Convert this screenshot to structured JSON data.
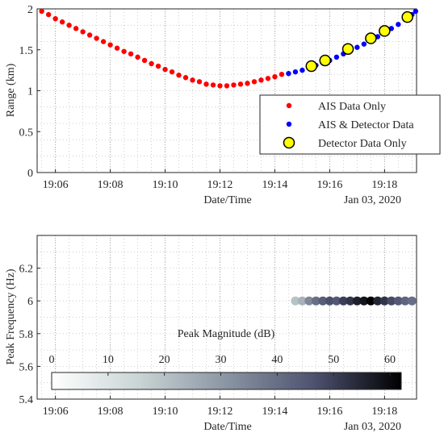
{
  "chart_data": [
    {
      "type": "scatter",
      "xlabel": "Date/Time",
      "ylabel": "Range (km)",
      "date_note": "Jan 03, 2020",
      "xlim": [
        "19:05:20",
        "19:19:10"
      ],
      "ylim": [
        0,
        2
      ],
      "grid": true,
      "grid_style": "dotted",
      "x_ticks": [
        "19:06",
        "19:08",
        "19:10",
        "19:12",
        "19:14",
        "19:16",
        "19:18"
      ],
      "y_ticks": [
        "0",
        "0.5",
        "1",
        "1.5",
        "2"
      ],
      "legend_position": "lower-right",
      "series": [
        {
          "name": "AIS Data Only",
          "color": "#ff0000",
          "marker": "dot",
          "points": [
            [
              "19:05:30",
              1.97
            ],
            [
              "19:05:45",
              1.93
            ],
            [
              "19:06:00",
              1.88
            ],
            [
              "19:06:15",
              1.84
            ],
            [
              "19:06:30",
              1.8
            ],
            [
              "19:06:45",
              1.76
            ],
            [
              "19:07:00",
              1.72
            ],
            [
              "19:07:15",
              1.68
            ],
            [
              "19:07:30",
              1.64
            ],
            [
              "19:07:45",
              1.6
            ],
            [
              "19:08:00",
              1.56
            ],
            [
              "19:08:15",
              1.52
            ],
            [
              "19:08:30",
              1.48
            ],
            [
              "19:08:45",
              1.45
            ],
            [
              "19:09:00",
              1.41
            ],
            [
              "19:09:15",
              1.37
            ],
            [
              "19:09:30",
              1.33
            ],
            [
              "19:09:45",
              1.3
            ],
            [
              "19:10:00",
              1.26
            ],
            [
              "19:10:15",
              1.23
            ],
            [
              "19:10:30",
              1.19
            ],
            [
              "19:10:45",
              1.16
            ],
            [
              "19:11:00",
              1.13
            ],
            [
              "19:11:15",
              1.11
            ],
            [
              "19:11:30",
              1.08
            ],
            [
              "19:11:45",
              1.07
            ],
            [
              "19:12:00",
              1.06
            ],
            [
              "19:12:15",
              1.06
            ],
            [
              "19:12:30",
              1.07
            ],
            [
              "19:12:45",
              1.08
            ],
            [
              "19:13:00",
              1.09
            ],
            [
              "19:13:15",
              1.11
            ],
            [
              "19:13:30",
              1.13
            ],
            [
              "19:13:45",
              1.15
            ],
            [
              "19:14:00",
              1.17
            ],
            [
              "19:14:15",
              1.2
            ]
          ]
        },
        {
          "name": "AIS & Detector Data",
          "color": "#0000ff",
          "marker": "dot",
          "points": [
            [
              "19:14:30",
              1.21
            ],
            [
              "19:14:45",
              1.23
            ],
            [
              "19:15:00",
              1.25
            ],
            [
              "19:15:15",
              1.28
            ],
            [
              "19:15:30",
              1.31
            ],
            [
              "19:15:45",
              1.34
            ],
            [
              "19:16:00",
              1.37
            ],
            [
              "19:16:15",
              1.41
            ],
            [
              "19:16:30",
              1.45
            ],
            [
              "19:16:45",
              1.49
            ],
            [
              "19:17:00",
              1.53
            ],
            [
              "19:17:15",
              1.57
            ],
            [
              "19:17:30",
              1.62
            ],
            [
              "19:17:45",
              1.66
            ],
            [
              "19:18:00",
              1.71
            ],
            [
              "19:18:15",
              1.76
            ],
            [
              "19:18:30",
              1.81
            ],
            [
              "19:18:45",
              1.87
            ],
            [
              "19:19:00",
              1.93
            ],
            [
              "19:19:08",
              1.97
            ]
          ]
        },
        {
          "name": "Detector Data Only",
          "color": "#ffff00",
          "marker": "circle",
          "points": [
            [
              "19:15:20",
              1.3
            ],
            [
              "19:15:50",
              1.37
            ],
            [
              "19:16:40",
              1.51
            ],
            [
              "19:17:30",
              1.64
            ],
            [
              "19:18:00",
              1.73
            ],
            [
              "19:18:50",
              1.9
            ]
          ]
        }
      ]
    },
    {
      "type": "scatter",
      "xlabel": "Date/Time",
      "ylabel": "Peak Frequency (Hz)",
      "date_note": "Jan 03, 2020",
      "xlim": [
        "19:05:20",
        "19:19:10"
      ],
      "ylim": [
        5.4,
        6.4
      ],
      "grid": true,
      "grid_style": "dotted",
      "x_ticks": [
        "19:06",
        "19:08",
        "19:10",
        "19:12",
        "19:14",
        "19:16",
        "19:18"
      ],
      "y_ticks": [
        "5.4",
        "5.6",
        "5.8",
        "6",
        "6.2"
      ],
      "points": [
        {
          "x": "19:14:45",
          "y": 6.0,
          "mag": 20
        },
        {
          "x": "19:15:00",
          "y": 6.0,
          "mag": 24
        },
        {
          "x": "19:15:15",
          "y": 6.0,
          "mag": 34
        },
        {
          "x": "19:15:30",
          "y": 6.0,
          "mag": 40
        },
        {
          "x": "19:15:45",
          "y": 6.0,
          "mag": 44
        },
        {
          "x": "19:16:00",
          "y": 6.0,
          "mag": 47
        },
        {
          "x": "19:16:15",
          "y": 6.0,
          "mag": 45
        },
        {
          "x": "19:16:30",
          "y": 6.0,
          "mag": 50
        },
        {
          "x": "19:16:45",
          "y": 6.0,
          "mag": 52
        },
        {
          "x": "19:17:00",
          "y": 6.0,
          "mag": 56
        },
        {
          "x": "19:17:15",
          "y": 6.0,
          "mag": 58
        },
        {
          "x": "19:17:30",
          "y": 6.0,
          "mag": 62
        },
        {
          "x": "19:17:45",
          "y": 6.0,
          "mag": 55
        },
        {
          "x": "19:18:00",
          "y": 6.0,
          "mag": 52
        },
        {
          "x": "19:18:15",
          "y": 6.0,
          "mag": 48
        },
        {
          "x": "19:18:30",
          "y": 6.0,
          "mag": 45
        },
        {
          "x": "19:18:45",
          "y": 6.0,
          "mag": 42
        },
        {
          "x": "19:19:00",
          "y": 6.0,
          "mag": 40
        }
      ],
      "colorbar": {
        "title": "Peak Magnitude (dB)",
        "range": [
          0,
          62
        ],
        "ticks": [
          "0",
          "10",
          "20",
          "30",
          "40",
          "50",
          "60"
        ],
        "colors": [
          "#ffffff",
          "#c9d4d4",
          "#8a95a3",
          "#4e5270",
          "#000000"
        ]
      }
    }
  ]
}
